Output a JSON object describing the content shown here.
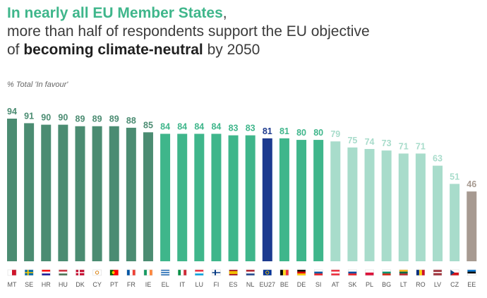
{
  "title": {
    "line1_bold": "In nearly all EU Member States",
    "line1_comma": ",",
    "line2": "more than half of respondents support the EU objective",
    "line3_pre": "of",
    "line3_bold": "becoming climate-neutral",
    "line3_post": "by 2050"
  },
  "unit_label": "% Total 'In favour'",
  "colors": {
    "dark_green": "#4b8c72",
    "mid_green": "#3fb68b",
    "light_green": "#a8dccb",
    "eu_blue": "#1d3a8f",
    "grey_brown": "#a79a91"
  },
  "chart_data": {
    "type": "bar",
    "ylabel": "% Total 'In favour'",
    "ylim": [
      0,
      100
    ],
    "grid": false,
    "categories": [
      "MT",
      "SE",
      "HR",
      "HU",
      "DK",
      "CY",
      "PT",
      "FR",
      "IE",
      "EL",
      "IT",
      "LU",
      "FI",
      "ES",
      "NL",
      "EU27",
      "BE",
      "DE",
      "SI",
      "AT",
      "SK",
      "PL",
      "BG",
      "LT",
      "RO",
      "LV",
      "CZ",
      "EE"
    ],
    "values": [
      94,
      91,
      90,
      90,
      89,
      89,
      89,
      88,
      85,
      84,
      84,
      84,
      84,
      83,
      83,
      81,
      81,
      80,
      80,
      79,
      75,
      74,
      73,
      71,
      71,
      63,
      51,
      46
    ],
    "bar_colors": [
      "dark_green",
      "dark_green",
      "dark_green",
      "dark_green",
      "dark_green",
      "dark_green",
      "dark_green",
      "dark_green",
      "dark_green",
      "mid_green",
      "mid_green",
      "mid_green",
      "mid_green",
      "mid_green",
      "mid_green",
      "eu_blue",
      "mid_green",
      "mid_green",
      "mid_green",
      "light_green",
      "light_green",
      "light_green",
      "light_green",
      "light_green",
      "light_green",
      "light_green",
      "light_green",
      "grey_brown"
    ],
    "flag_icons": [
      "flag-mt-icon",
      "flag-se-icon",
      "flag-hr-icon",
      "flag-hu-icon",
      "flag-dk-icon",
      "flag-cy-icon",
      "flag-pt-icon",
      "flag-fr-icon",
      "flag-ie-icon",
      "flag-el-icon",
      "flag-it-icon",
      "flag-lu-icon",
      "flag-fi-icon",
      "flag-es-icon",
      "flag-nl-icon",
      "flag-eu27-icon",
      "flag-be-icon",
      "flag-de-icon",
      "flag-si-icon",
      "flag-at-icon",
      "flag-sk-icon",
      "flag-pl-icon",
      "flag-bg-icon",
      "flag-lt-icon",
      "flag-ro-icon",
      "flag-lv-icon",
      "flag-cz-icon",
      "flag-ee-icon"
    ]
  }
}
